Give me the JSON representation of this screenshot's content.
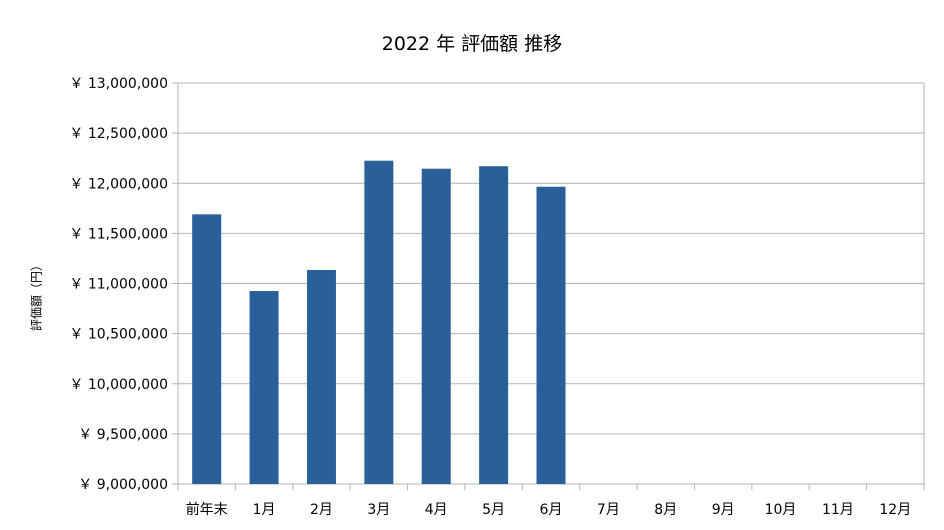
{
  "chart_data": {
    "type": "bar",
    "title": "2022 年 評価額 推移",
    "xlabel": "",
    "ylabel": "評価額（円）",
    "categories": [
      "前年末",
      "1月",
      "2月",
      "3月",
      "4月",
      "5月",
      "6月",
      "7月",
      "8月",
      "9月",
      "10月",
      "11月",
      "12月"
    ],
    "values": [
      11690000,
      10925000,
      11135000,
      12225000,
      12145000,
      12170000,
      11965000,
      null,
      null,
      null,
      null,
      null,
      null
    ],
    "ylim": [
      9000000,
      13000000
    ],
    "yticks": [
      9000000,
      9500000,
      10000000,
      10500000,
      11000000,
      11500000,
      12000000,
      12500000,
      13000000
    ],
    "ytick_labels": [
      "￥ 9,000,000",
      "￥ 9,500,000",
      "￥ 10,000,000",
      "￥ 10,500,000",
      "￥ 11,000,000",
      "￥ 11,500,000",
      "￥ 12,000,000",
      "￥ 12,500,000",
      "￥ 13,000,000"
    ],
    "grid": true,
    "legend": "none",
    "colors": {
      "bar": "#2a6099",
      "grid": "#b3b3b3",
      "axis": "#b3b3b3"
    }
  }
}
